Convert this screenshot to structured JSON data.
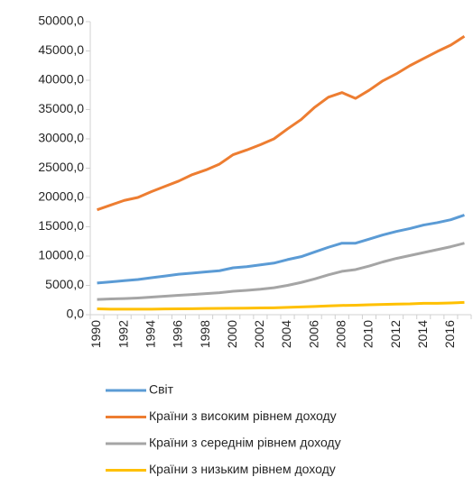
{
  "chart_data": {
    "type": "line",
    "categories": [
      "1990",
      null,
      "1992",
      null,
      "1994",
      null,
      "1996",
      null,
      "1998",
      null,
      "2000",
      null,
      "2002",
      null,
      "2004",
      null,
      "2006",
      null,
      "2008",
      null,
      "2010",
      null,
      "2012",
      null,
      "2014",
      null,
      "2016",
      null
    ],
    "series": [
      {
        "name": "Світ",
        "color": "#5b9bd5",
        "values": [
          5400,
          5600,
          5800,
          6000,
          6300,
          6600,
          6900,
          7100,
          7300,
          7500,
          8000,
          8200,
          8500,
          8800,
          9400,
          9900,
          10700,
          11500,
          12200,
          12200,
          12900,
          13600,
          14200,
          14700,
          15300,
          15700,
          16200,
          17000
        ]
      },
      {
        "name": "Країни з високим рівнем доходу",
        "color": "#ed7d31",
        "values": [
          17900,
          18700,
          19500,
          20000,
          21000,
          21900,
          22800,
          23900,
          24700,
          25700,
          27300,
          28100,
          29000,
          30000,
          31700,
          33300,
          35400,
          37100,
          37900,
          36900,
          38300,
          39900,
          41100,
          42500,
          43700,
          44900,
          46000,
          47500
        ]
      },
      {
        "name": "Країни з середнім рівнем доходу",
        "color": "#a5a5a5",
        "values": [
          2600,
          2700,
          2750,
          2850,
          3000,
          3150,
          3300,
          3450,
          3600,
          3750,
          4000,
          4150,
          4350,
          4600,
          5000,
          5500,
          6100,
          6800,
          7400,
          7700,
          8300,
          9000,
          9600,
          10100,
          10600,
          11100,
          11600,
          12200
        ]
      },
      {
        "name": "Країни з низьким рівнем доходу",
        "color": "#ffc000",
        "values": [
          1000,
          950,
          950,
          950,
          950,
          980,
          1000,
          1020,
          1050,
          1080,
          1100,
          1120,
          1150,
          1180,
          1250,
          1320,
          1400,
          1500,
          1580,
          1620,
          1700,
          1750,
          1800,
          1850,
          1950,
          1950,
          2000,
          2100
        ]
      }
    ],
    "ylim": [
      0,
      50000
    ],
    "yticks": [
      {
        "value": 0,
        "label": "0,0"
      },
      {
        "value": 5000,
        "label": "5000,0"
      },
      {
        "value": 10000,
        "label": "10000,0"
      },
      {
        "value": 15000,
        "label": "15000,0"
      },
      {
        "value": 20000,
        "label": "20000,0"
      },
      {
        "value": 25000,
        "label": "25000,0"
      },
      {
        "value": 30000,
        "label": "30000,0"
      },
      {
        "value": 35000,
        "label": "35000,0"
      },
      {
        "value": 40000,
        "label": "40000,0"
      },
      {
        "value": 45000,
        "label": "45000,0"
      },
      {
        "value": 50000,
        "label": "50000,0"
      }
    ],
    "grid": false
  }
}
